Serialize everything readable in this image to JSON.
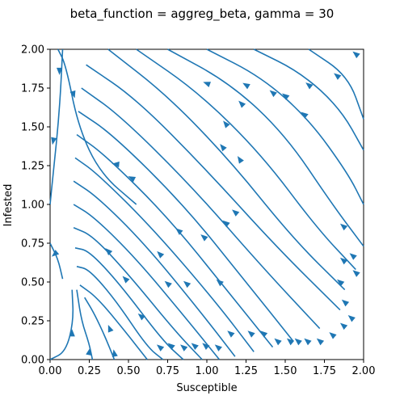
{
  "chart_data": {
    "type": "streamplot",
    "title": "beta_function = aggreg_beta, gamma = 30",
    "xlabel": "Susceptible",
    "ylabel": "Infested",
    "xlim": [
      0,
      2
    ],
    "ylim": [
      0,
      2
    ],
    "xticks": [
      "0.00",
      "0.25",
      "0.50",
      "0.75",
      "1.00",
      "1.25",
      "1.50",
      "1.75",
      "2.00"
    ],
    "yticks": [
      "0.00",
      "0.25",
      "0.50",
      "0.75",
      "1.00",
      "1.25",
      "1.50",
      "1.75",
      "2.00"
    ],
    "color": "#1f77b4",
    "grid": false,
    "streamlines": [
      {
        "points": [
          [
            1.65,
            2.0
          ],
          [
            1.9,
            1.83
          ],
          [
            2.0,
            1.55
          ]
        ]
      },
      {
        "points": [
          [
            1.3,
            2.0
          ],
          [
            1.6,
            1.85
          ],
          [
            1.85,
            1.62
          ],
          [
            2.0,
            1.35
          ]
        ]
      },
      {
        "points": [
          [
            1.0,
            2.0
          ],
          [
            1.35,
            1.82
          ],
          [
            1.65,
            1.55
          ],
          [
            1.9,
            1.2
          ],
          [
            2.0,
            1.0
          ]
        ]
      },
      {
        "points": [
          [
            0.75,
            2.0
          ],
          [
            1.15,
            1.78
          ],
          [
            1.5,
            1.45
          ],
          [
            1.8,
            1.0
          ],
          [
            2.0,
            0.73
          ]
        ]
      },
      {
        "points": [
          [
            0.55,
            2.0
          ],
          [
            0.95,
            1.72
          ],
          [
            1.35,
            1.32
          ],
          [
            1.7,
            0.85
          ],
          [
            1.95,
            0.58
          ]
        ]
      },
      {
        "points": [
          [
            0.37,
            2.0
          ],
          [
            0.75,
            1.7
          ],
          [
            1.15,
            1.28
          ],
          [
            1.55,
            0.78
          ],
          [
            1.88,
            0.45
          ]
        ]
      },
      {
        "points": [
          [
            0.23,
            1.9
          ],
          [
            0.55,
            1.68
          ],
          [
            1.0,
            1.22
          ],
          [
            1.45,
            0.72
          ],
          [
            1.85,
            0.32
          ]
        ]
      },
      {
        "points": [
          [
            0.2,
            1.75
          ],
          [
            0.45,
            1.57
          ],
          [
            0.9,
            1.12
          ],
          [
            1.35,
            0.6
          ],
          [
            1.72,
            0.2
          ]
        ]
      },
      {
        "points": [
          [
            0.18,
            1.6
          ],
          [
            0.4,
            1.45
          ],
          [
            0.85,
            1.0
          ],
          [
            1.25,
            0.5
          ],
          [
            1.55,
            0.12
          ]
        ]
      },
      {
        "points": [
          [
            0.17,
            1.45
          ],
          [
            0.35,
            1.32
          ],
          [
            0.75,
            0.92
          ],
          [
            1.15,
            0.42
          ],
          [
            1.42,
            0.08
          ]
        ]
      },
      {
        "points": [
          [
            0.16,
            1.3
          ],
          [
            0.3,
            1.2
          ],
          [
            0.65,
            0.85
          ],
          [
            1.05,
            0.38
          ],
          [
            1.3,
            0.05
          ]
        ]
      },
      {
        "points": [
          [
            0.15,
            1.15
          ],
          [
            0.3,
            1.05
          ],
          [
            0.6,
            0.75
          ],
          [
            0.95,
            0.32
          ],
          [
            1.18,
            0.02
          ]
        ]
      },
      {
        "points": [
          [
            0.15,
            1.0
          ],
          [
            0.28,
            0.92
          ],
          [
            0.55,
            0.65
          ],
          [
            0.88,
            0.25
          ],
          [
            1.08,
            0.0
          ]
        ]
      },
      {
        "points": [
          [
            0.15,
            0.85
          ],
          [
            0.27,
            0.8
          ],
          [
            0.5,
            0.55
          ],
          [
            0.8,
            0.18
          ],
          [
            0.97,
            0.0
          ]
        ]
      },
      {
        "points": [
          [
            0.16,
            0.72
          ],
          [
            0.25,
            0.7
          ],
          [
            0.45,
            0.48
          ],
          [
            0.72,
            0.12
          ],
          [
            0.85,
            0.0
          ]
        ]
      },
      {
        "points": [
          [
            0.17,
            0.6
          ],
          [
            0.25,
            0.58
          ],
          [
            0.42,
            0.38
          ],
          [
            0.62,
            0.08
          ],
          [
            0.72,
            0.0
          ]
        ]
      },
      {
        "points": [
          [
            0.19,
            0.48
          ],
          [
            0.3,
            0.4
          ],
          [
            0.48,
            0.18
          ],
          [
            0.62,
            0.0
          ]
        ]
      },
      {
        "points": [
          [
            0.05,
            2.0
          ],
          [
            0.1,
            1.9
          ],
          [
            0.18,
            1.5
          ],
          [
            0.32,
            1.2
          ],
          [
            0.55,
            1.0
          ]
        ]
      },
      {
        "points": [
          [
            0.08,
            2.0
          ],
          [
            0.06,
            1.6
          ],
          [
            0.02,
            1.2
          ],
          [
            0.0,
            1.0
          ]
        ]
      },
      {
        "points": [
          [
            0.0,
            0.75
          ],
          [
            0.05,
            0.65
          ],
          [
            0.08,
            0.52
          ]
        ]
      },
      {
        "points": [
          [
            0.0,
            0.0
          ],
          [
            0.1,
            0.05
          ],
          [
            0.15,
            0.25
          ],
          [
            0.14,
            0.45
          ]
        ]
      },
      {
        "points": [
          [
            0.27,
            0.0
          ],
          [
            0.25,
            0.1
          ],
          [
            0.2,
            0.25
          ],
          [
            0.17,
            0.45
          ]
        ]
      },
      {
        "points": [
          [
            0.41,
            0.0
          ],
          [
            0.35,
            0.15
          ],
          [
            0.28,
            0.3
          ],
          [
            0.22,
            0.4
          ]
        ]
      }
    ],
    "arrows": [
      [
        0.06,
        1.86,
        0.0,
        -1.0
      ],
      [
        0.15,
        1.71,
        0.3,
        -1.0
      ],
      [
        0.02,
        1.41,
        -0.2,
        -1.0
      ],
      [
        0.03,
        0.68,
        -0.6,
        -0.5
      ],
      [
        0.14,
        0.17,
        0.0,
        1.0
      ],
      [
        0.25,
        0.05,
        0.2,
        1.0
      ],
      [
        0.41,
        0.04,
        -0.2,
        1.0
      ],
      [
        0.38,
        0.2,
        -0.4,
        1.0
      ],
      [
        0.42,
        1.26,
        -1.0,
        0.1
      ],
      [
        0.52,
        1.17,
        -1.0,
        0.5
      ],
      [
        0.37,
        0.7,
        -0.5,
        0.5
      ],
      [
        0.48,
        0.52,
        -0.5,
        0.5
      ],
      [
        0.58,
        0.28,
        -0.6,
        0.5
      ],
      [
        0.7,
        0.68,
        -0.5,
        0.5
      ],
      [
        0.75,
        0.49,
        -0.6,
        0.5
      ],
      [
        0.82,
        0.83,
        -0.6,
        0.5
      ],
      [
        0.87,
        0.49,
        -0.6,
        0.5
      ],
      [
        0.98,
        0.79,
        -0.6,
        0.5
      ],
      [
        1.08,
        0.5,
        -0.6,
        0.5
      ],
      [
        1.12,
        0.88,
        -0.6,
        0.5
      ],
      [
        1.18,
        0.95,
        -0.6,
        0.5
      ],
      [
        1.1,
        1.37,
        -0.5,
        0.6
      ],
      [
        1.12,
        1.52,
        -0.5,
        0.6
      ],
      [
        1.21,
        1.29,
        -0.4,
        0.6
      ],
      [
        1.22,
        1.65,
        -0.5,
        0.5
      ],
      [
        1.25,
        1.77,
        -0.5,
        0.3
      ],
      [
        1.42,
        1.72,
        -0.5,
        0.4
      ],
      [
        1.5,
        1.7,
        -0.5,
        0.4
      ],
      [
        1.65,
        1.77,
        -0.5,
        0.4
      ],
      [
        1.83,
        1.83,
        -0.5,
        0.4
      ],
      [
        1.95,
        1.97,
        -0.5,
        0.4
      ],
      [
        1.0,
        1.78,
        -0.8,
        0.3
      ],
      [
        0.7,
        0.08,
        -0.6,
        0.5
      ],
      [
        0.77,
        0.09,
        -0.6,
        0.5
      ],
      [
        0.85,
        0.08,
        -0.6,
        0.5
      ],
      [
        0.92,
        0.09,
        -0.6,
        0.5
      ],
      [
        0.99,
        0.09,
        -0.6,
        0.5
      ],
      [
        1.07,
        0.08,
        -0.6,
        0.5
      ],
      [
        1.15,
        0.17,
        -0.6,
        0.5
      ],
      [
        1.28,
        0.17,
        -0.6,
        0.5
      ],
      [
        1.36,
        0.17,
        -0.6,
        0.5
      ],
      [
        1.45,
        0.12,
        -0.6,
        0.5
      ],
      [
        1.53,
        0.12,
        -0.6,
        0.5
      ],
      [
        1.58,
        0.12,
        -0.6,
        0.5
      ],
      [
        1.64,
        0.12,
        -0.6,
        0.5
      ],
      [
        1.72,
        0.12,
        -0.6,
        0.5
      ],
      [
        1.8,
        0.16,
        -0.6,
        0.5
      ],
      [
        1.87,
        0.22,
        -0.6,
        0.5
      ],
      [
        1.92,
        0.27,
        -0.6,
        0.5
      ],
      [
        1.88,
        0.37,
        -0.6,
        0.5
      ],
      [
        1.85,
        0.5,
        -0.6,
        0.5
      ],
      [
        1.87,
        0.64,
        -0.6,
        0.5
      ],
      [
        1.87,
        0.86,
        -0.6,
        0.5
      ],
      [
        1.93,
        0.67,
        -0.6,
        0.5
      ],
      [
        1.95,
        0.56,
        -0.6,
        0.5
      ],
      [
        1.62,
        1.58,
        -0.5,
        0.4
      ]
    ]
  }
}
